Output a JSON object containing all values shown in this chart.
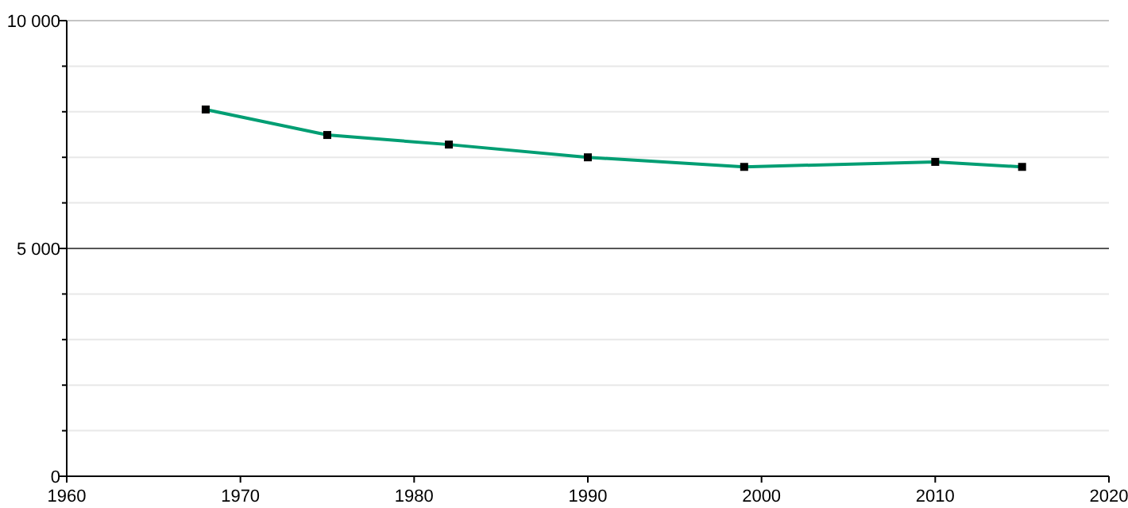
{
  "chart_data": {
    "type": "line",
    "x": [
      1968,
      1975,
      1982,
      1990,
      1999,
      2010,
      2015
    ],
    "series": [
      {
        "color": "#009e73",
        "values": [
          8050,
          7490,
          7280,
          7000,
          6790,
          6900,
          6790
        ]
      }
    ],
    "xlim": [
      1960,
      2020
    ],
    "xticks": [
      1960,
      1970,
      1980,
      1990,
      2000,
      2010,
      2020
    ],
    "ylim": [
      0,
      10000
    ],
    "yticks": [
      0,
      {
        "value": 1000,
        "label": null
      },
      {
        "value": 2000,
        "label": null
      },
      {
        "value": 3000,
        "label": null
      },
      {
        "value": 4000,
        "label": null
      },
      {
        "value": 5000,
        "label": "5 000"
      },
      {
        "value": 6000,
        "label": null
      },
      {
        "value": 7000,
        "label": null
      },
      {
        "value": 8000,
        "label": null
      },
      {
        "value": 9000,
        "label": null
      },
      {
        "value": 10000,
        "label": "10 000"
      }
    ],
    "ref_lines": [
      {
        "axis": "y",
        "value": 5000,
        "color": "#555555"
      }
    ],
    "grid": true,
    "marker": "square",
    "line_style": "solid"
  }
}
